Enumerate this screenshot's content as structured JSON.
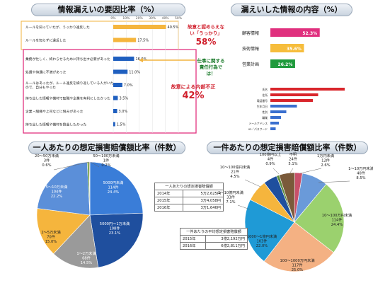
{
  "banners": {
    "top_left": "情報漏えいの要因比率（%）",
    "top_right": "漏えいした情報の内容（%）",
    "bottom_left": "一人あたりの想定損害賠償額比率（件数）",
    "bottom_right": "一件あたりの想定損害賠償額比率（件数）"
  },
  "callouts": {
    "mistake": "故意と認めらえない「うっかり」",
    "mistake_pct": "58%",
    "work": "仕事に関する責任行為では！",
    "internal": "故意による内部不正",
    "internal_pct": "42%"
  },
  "tables": {
    "per_person": {
      "header": "一人あたりの想定損害賠償額",
      "rows": [
        {
          "year": "2014年",
          "value": "5万2,625円"
        },
        {
          "year": "2015年",
          "value": "3万4,058円"
        },
        {
          "year": "2016年",
          "value": "3万1,646円"
        }
      ]
    },
    "per_case": {
      "header": "一件あたりの平均想定損害賠償額",
      "rows": [
        {
          "year": "2015年",
          "value": "3億2,192万円"
        },
        {
          "year": "2016年",
          "value": "6億2,811万円"
        }
      ]
    }
  },
  "chart_data": [
    {
      "type": "bar",
      "orientation": "horizontal",
      "title": "情報漏えいの要因比率（%）",
      "categories": [
        "ルールを知っていたが、うっかり違反した",
        "ルールを知らずに違反した",
        "業務が忙しく、終わらせるために持ち出す必要があった",
        "処遇や待遇に不満があった",
        "ルールはあったが、ルール違反を繰り返している人がいたので、自分もやった",
        "持ち出した情報や機材で転職や企業を有利にしたかった",
        "企業・組織や上司などに恨みがあった",
        "持ち出した情報や機材を換金したかった"
      ],
      "values": [
        40.5,
        17.5,
        16.0,
        11.0,
        7.0,
        3.5,
        3.0,
        1.5
      ],
      "value_labels": [
        "40.5%",
        "17.5%",
        "16.0%",
        "11.0%",
        "7.0%",
        "3.5%",
        "3.0%",
        "1.5%"
      ],
      "xticks": [
        "0%",
        "10%",
        "20%",
        "30%",
        "40%",
        "50%"
      ],
      "xlim": [
        0,
        50
      ],
      "colors": [
        "#f5b53d",
        "#f5b53d",
        "#1f5fbf",
        "#1f5fbf",
        "#1f5fbf",
        "#1f5fbf",
        "#1f5fbf",
        "#1f5fbf"
      ]
    },
    {
      "type": "bar",
      "orientation": "horizontal",
      "title": "漏えいした情報の内容（%）",
      "categories": [
        "顧客情報",
        "技術情報",
        "営業計画"
      ],
      "values": [
        52.3,
        35.6,
        26.2
      ],
      "value_labels": [
        "52.3%",
        "35.6%",
        "26.2%"
      ],
      "colors": [
        "#e0307e",
        "#f6bd3c",
        "#1f9a3c"
      ]
    },
    {
      "type": "bar",
      "orientation": "horizontal",
      "categories": [
        "氏名",
        "住所",
        "電話番号",
        "生年月日",
        "性別",
        "職業",
        "メールアドレス",
        "ID／パスワード"
      ],
      "values": [
        70,
        45,
        40,
        25,
        15,
        10,
        8,
        5
      ],
      "color": "#d9262c",
      "highlight": {
        "categories": [
          "生年月日",
          "性別",
          "職業",
          "メールアドレス",
          "ID／パスワード"
        ],
        "color": "#3a6fcf"
      }
    },
    {
      "type": "pie",
      "title": "一人あたりの想定損害賠償額比率（件数）",
      "slices": [
        {
          "label": "5000円未満",
          "count": "114件",
          "pct": "24.4%",
          "value": 24.4,
          "color": "#3a7dd8"
        },
        {
          "label": "5000円〜1万未満",
          "count": "108件",
          "pct": "23.1%",
          "value": 23.1,
          "color": "#1f4f9e"
        },
        {
          "label": "1〜2万未満",
          "count": "68件",
          "pct": "14.5%",
          "value": 14.5,
          "color": "#9a9a9a"
        },
        {
          "label": "2〜5万未満",
          "count": "70件",
          "pct": "15.0%",
          "value": 15.0,
          "color": "#f5b53d"
        },
        {
          "label": "5〜10万未満",
          "count": "104件",
          "pct": "22.2%",
          "value": 22.2,
          "color": "#5b8fd9"
        },
        {
          "label": "20〜50万未満",
          "count": "3件",
          "pct": "0.6%",
          "value": 0.6,
          "color": "#6a9a3c"
        },
        {
          "label": "50〜100万未満",
          "count": "1件",
          "pct": "0.2%",
          "value": 0.2,
          "color": "#7a4f2a"
        }
      ]
    },
    {
      "type": "pie",
      "title": "一件あたりの想定損害賠償額比率（件数）",
      "slices": [
        {
          "label": "1万円未満",
          "count": "12件",
          "pct": "2.6%",
          "value": 2.6,
          "color": "#c9506a"
        },
        {
          "label": "1〜10万円未満",
          "count": "40件",
          "pct": "8.5%",
          "value": 8.5,
          "color": "#6a9ad9"
        },
        {
          "label": "10〜100万円未満",
          "count": "114件",
          "pct": "24.4%",
          "value": 24.4,
          "color": "#9bd16e"
        },
        {
          "label": "100〜1000万円未満",
          "count": "117件",
          "pct": "25.0%",
          "value": 25.0,
          "color": "#f4b183"
        },
        {
          "label": "1000〜1億円未満",
          "count": "103件",
          "pct": "22.0%",
          "value": 22.0,
          "color": "#1f9ad6"
        },
        {
          "label": "1〜10億円未満",
          "count": "33件",
          "pct": "7.1%",
          "value": 7.1,
          "color": "#f5b53d"
        },
        {
          "label": "10〜100億円未満",
          "count": "21件",
          "pct": "4.5%",
          "value": 4.5,
          "color": "#1f4f9e"
        },
        {
          "label": "100億円以上",
          "count": "4件",
          "pct": "0.9%",
          "value": 0.9,
          "color": "#5b8a3c"
        },
        {
          "label": "不明",
          "count": "24件",
          "pct": "5.1%",
          "value": 5.1,
          "color": "#7a5a3a"
        }
      ]
    }
  ]
}
